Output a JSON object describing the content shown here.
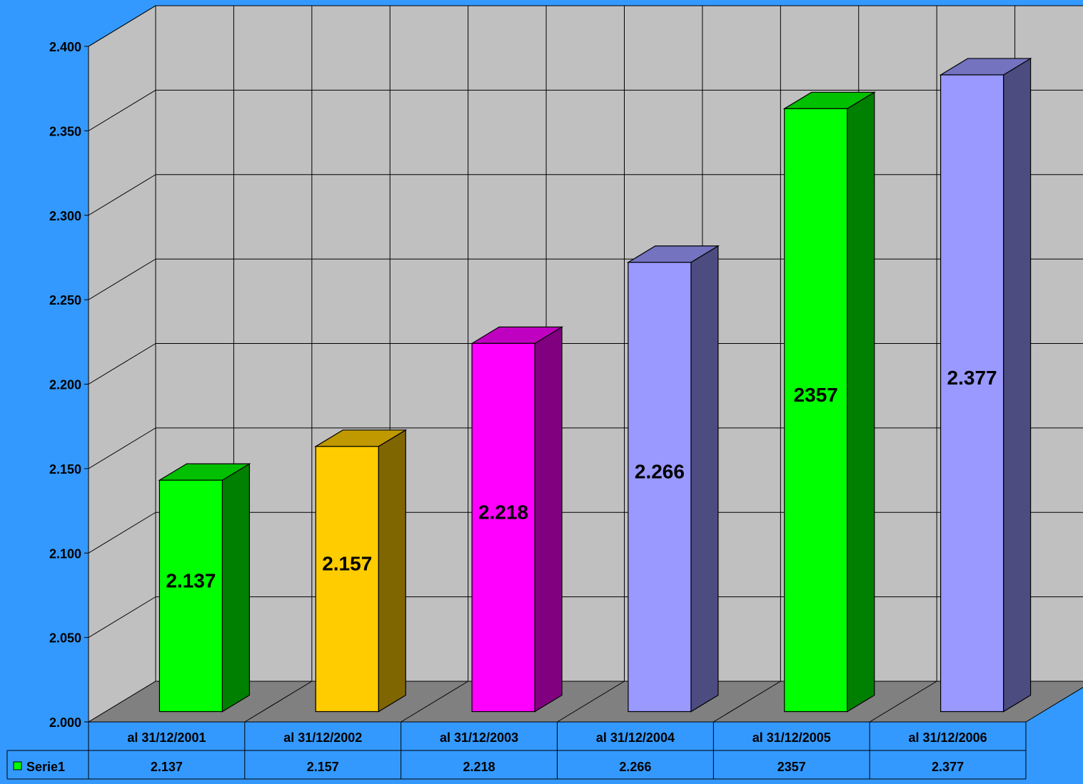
{
  "colors": {
    "background": "#3399ff",
    "back_wall": "#c0c0c0",
    "side_wall": "#c0c0c0",
    "floor": "#808080",
    "grid": "#000000"
  },
  "chart_data": {
    "type": "bar",
    "three_d": true,
    "grid": true,
    "categories": [
      "al 31/12/2001",
      "al 31/12/2002",
      "al 31/12/2003",
      "al 31/12/2004",
      "al 31/12/2005",
      "al 31/12/2006"
    ],
    "series": [
      {
        "name": "Serie1",
        "values": [
          2137,
          2157,
          2218,
          2266,
          2357,
          2377
        ],
        "labels": [
          "2.137",
          "2.157",
          "2.218",
          "2.266",
          "2357",
          "2.377"
        ],
        "colors": [
          {
            "front": "#00ff00",
            "side": "#008000",
            "top": "#00c000"
          },
          {
            "front": "#ffcc00",
            "side": "#806600",
            "top": "#c09900"
          },
          {
            "front": "#ff00ff",
            "side": "#800080",
            "top": "#c000c0"
          },
          {
            "front": "#9999ff",
            "side": "#4c4c80",
            "top": "#7373c0"
          },
          {
            "front": "#00ff00",
            "side": "#008000",
            "top": "#00c000"
          },
          {
            "front": "#9999ff",
            "side": "#4c4c80",
            "top": "#7373c0"
          }
        ]
      }
    ],
    "legend_swatch_color": "#00ff00",
    "ylim": [
      2000,
      2400
    ],
    "yticks": [
      2000,
      2050,
      2100,
      2150,
      2200,
      2250,
      2300,
      2350,
      2400
    ],
    "ytick_labels": [
      "2.000",
      "2.050",
      "2.100",
      "2.150",
      "2.200",
      "2.250",
      "2.300",
      "2.350",
      "2.400"
    ],
    "data_table": {
      "row_label": "Serie1",
      "cells": [
        "2.137",
        "2.157",
        "2.218",
        "2.266",
        "2357",
        "2.377"
      ]
    }
  }
}
